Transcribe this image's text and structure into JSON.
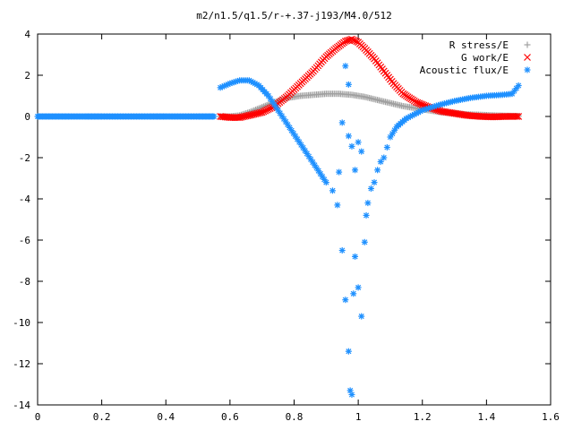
{
  "chart_data": {
    "type": "scatter",
    "title": "m2/n1.5/q1.5/r-+.37-j193/M4.0/512",
    "xlabel": "",
    "ylabel": "",
    "xlim": [
      0,
      1.6
    ],
    "ylim": [
      -14,
      4
    ],
    "x_ticks": [
      0,
      0.2,
      0.4,
      0.6,
      0.8,
      1,
      1.2,
      1.4,
      1.6
    ],
    "x_tick_labels": [
      "0",
      "0.2",
      "0.4",
      "0.6",
      "0.8",
      "1",
      "1.2",
      "1.4",
      "1.6"
    ],
    "y_ticks": [
      4,
      2,
      0,
      -2,
      -4,
      -6,
      -8,
      -10,
      -12,
      -14
    ],
    "y_tick_labels": [
      "4",
      "2",
      "0",
      "-2",
      "-4",
      "-6",
      "-8",
      "-10",
      "-12",
      "-14"
    ],
    "grid": false,
    "legend_position": "top-right",
    "series": [
      {
        "name": "R stress/E",
        "marker": "plus",
        "color": "#a0a0a0",
        "points": [
          [
            0.57,
            0.0
          ],
          [
            0.6,
            0.0
          ],
          [
            0.63,
            0.05
          ],
          [
            0.66,
            0.2
          ],
          [
            0.7,
            0.45
          ],
          [
            0.74,
            0.7
          ],
          [
            0.78,
            0.9
          ],
          [
            0.82,
            1.0
          ],
          [
            0.86,
            1.05
          ],
          [
            0.9,
            1.1
          ],
          [
            0.94,
            1.1
          ],
          [
            0.98,
            1.05
          ],
          [
            1.02,
            0.95
          ],
          [
            1.06,
            0.8
          ],
          [
            1.1,
            0.65
          ],
          [
            1.14,
            0.5
          ],
          [
            1.18,
            0.4
          ],
          [
            1.22,
            0.3
          ],
          [
            1.26,
            0.2
          ],
          [
            1.3,
            0.15
          ],
          [
            1.34,
            0.1
          ],
          [
            1.38,
            0.08
          ],
          [
            1.42,
            0.05
          ],
          [
            1.46,
            0.03
          ],
          [
            1.5,
            0.02
          ]
        ]
      },
      {
        "name": "G work/E",
        "marker": "cross",
        "color": "#ff0000",
        "points": [
          [
            0.57,
            0.0
          ],
          [
            0.6,
            -0.05
          ],
          [
            0.63,
            -0.05
          ],
          [
            0.66,
            0.05
          ],
          [
            0.7,
            0.2
          ],
          [
            0.74,
            0.5
          ],
          [
            0.78,
            1.0
          ],
          [
            0.82,
            1.6
          ],
          [
            0.86,
            2.2
          ],
          [
            0.9,
            2.9
          ],
          [
            0.93,
            3.3
          ],
          [
            0.96,
            3.65
          ],
          [
            0.98,
            3.75
          ],
          [
            1.0,
            3.6
          ],
          [
            1.02,
            3.3
          ],
          [
            1.05,
            2.8
          ],
          [
            1.08,
            2.2
          ],
          [
            1.11,
            1.6
          ],
          [
            1.14,
            1.1
          ],
          [
            1.18,
            0.7
          ],
          [
            1.22,
            0.45
          ],
          [
            1.26,
            0.25
          ],
          [
            1.3,
            0.15
          ],
          [
            1.34,
            0.05
          ],
          [
            1.38,
            0.0
          ],
          [
            1.42,
            -0.02
          ],
          [
            1.46,
            0.0
          ],
          [
            1.5,
            0.0
          ]
        ]
      },
      {
        "name": "Acoustic flux/E",
        "marker": "star",
        "color": "#1e90ff",
        "points": [
          [
            0.0,
            0.0
          ],
          [
            0.05,
            0.0
          ],
          [
            0.1,
            0.0
          ],
          [
            0.15,
            0.0
          ],
          [
            0.2,
            0.0
          ],
          [
            0.25,
            0.0
          ],
          [
            0.3,
            0.0
          ],
          [
            0.35,
            0.0
          ],
          [
            0.4,
            0.0
          ],
          [
            0.45,
            0.0
          ],
          [
            0.5,
            0.0
          ],
          [
            0.55,
            0.0
          ],
          [
            0.57,
            1.4
          ],
          [
            0.6,
            1.6
          ],
          [
            0.63,
            1.75
          ],
          [
            0.66,
            1.75
          ],
          [
            0.69,
            1.5
          ],
          [
            0.72,
            1.0
          ],
          [
            0.75,
            0.3
          ],
          [
            0.78,
            -0.4
          ],
          [
            0.81,
            -1.1
          ],
          [
            0.84,
            -1.8
          ],
          [
            0.87,
            -2.5
          ],
          [
            0.9,
            -3.2
          ],
          [
            0.92,
            -3.6
          ],
          [
            0.935,
            -4.3
          ],
          [
            0.95,
            -6.5
          ],
          [
            0.96,
            -8.9
          ],
          [
            0.97,
            -11.4
          ],
          [
            0.975,
            -13.3
          ],
          [
            0.98,
            -13.5
          ],
          [
            0.985,
            -8.6
          ],
          [
            0.99,
            -6.8
          ],
          [
            1.0,
            -8.3
          ],
          [
            1.01,
            -9.7
          ],
          [
            1.02,
            -6.1
          ],
          [
            1.025,
            -4.8
          ],
          [
            1.03,
            -4.2
          ],
          [
            1.04,
            -3.5
          ],
          [
            1.05,
            -3.2
          ],
          [
            1.06,
            -2.6
          ],
          [
            1.07,
            -2.2
          ],
          [
            1.08,
            -2.0
          ],
          [
            1.09,
            -1.5
          ],
          [
            1.1,
            -1.0
          ],
          [
            1.12,
            -0.5
          ],
          [
            1.15,
            -0.1
          ],
          [
            1.2,
            0.3
          ],
          [
            1.25,
            0.55
          ],
          [
            1.3,
            0.75
          ],
          [
            1.35,
            0.9
          ],
          [
            1.4,
            1.0
          ],
          [
            1.45,
            1.05
          ],
          [
            1.48,
            1.1
          ],
          [
            1.5,
            1.5
          ],
          [
            0.96,
            2.45
          ],
          [
            0.97,
            1.55
          ],
          [
            0.95,
            -0.3
          ],
          [
            0.97,
            -0.95
          ],
          [
            0.98,
            -1.45
          ],
          [
            1.0,
            -1.25
          ],
          [
            1.01,
            -1.7
          ],
          [
            0.99,
            -2.6
          ],
          [
            0.94,
            -2.7
          ]
        ]
      }
    ]
  }
}
